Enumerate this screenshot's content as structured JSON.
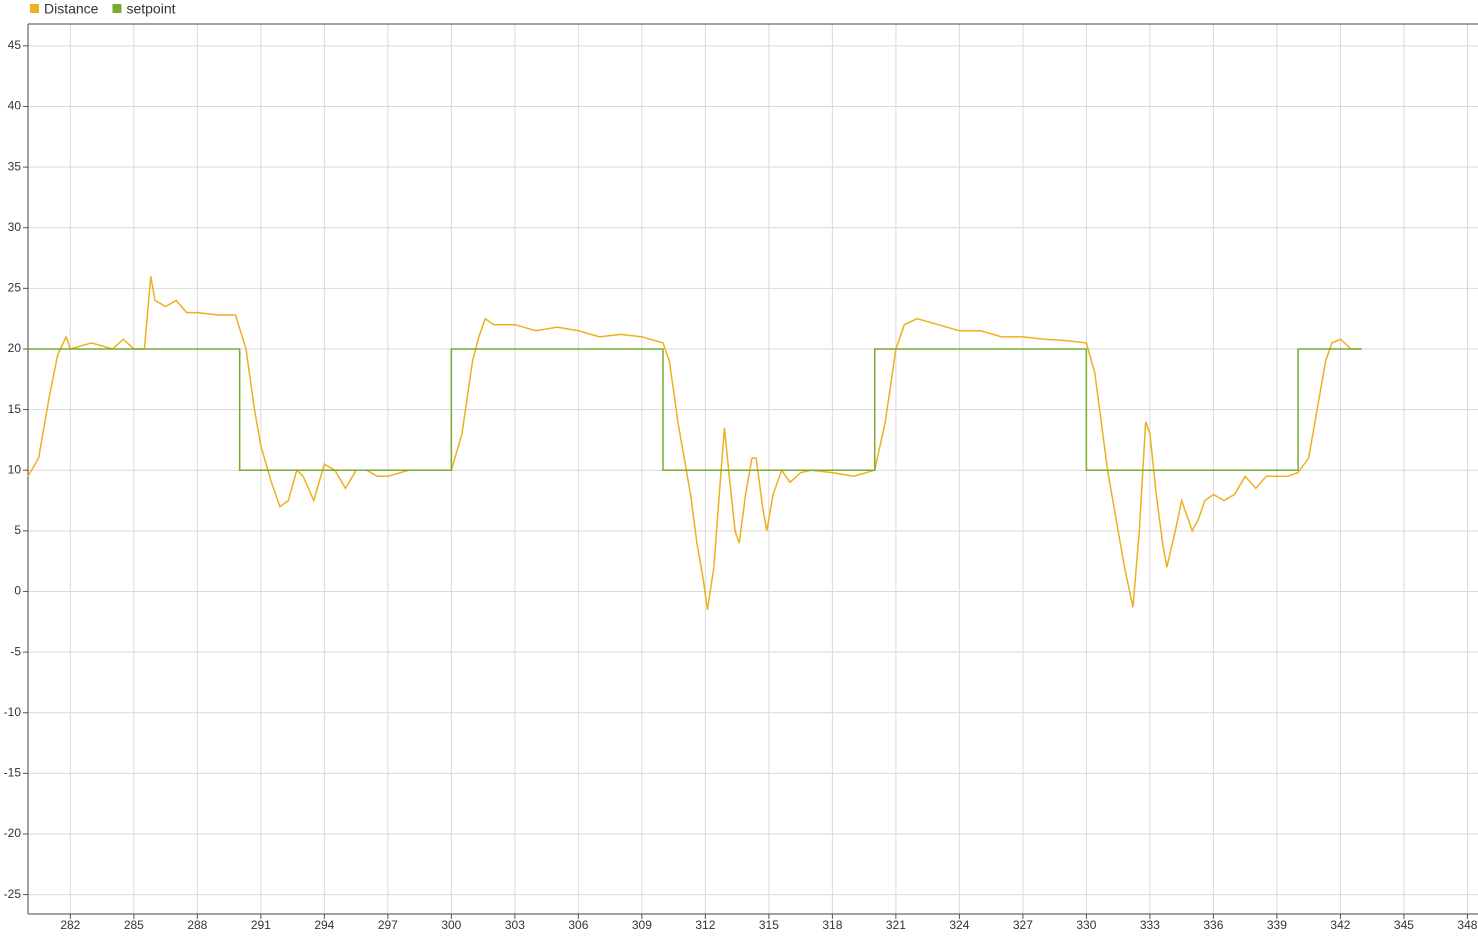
{
  "chart_data": {
    "type": "line",
    "legend": "top-left",
    "grid": true,
    "xlim": [
      280,
      348.5
    ],
    "ylim": [
      -26.6,
      46.8
    ],
    "xticks": [
      282,
      285,
      288,
      291,
      294,
      297,
      300,
      303,
      306,
      309,
      312,
      315,
      318,
      321,
      324,
      327,
      330,
      333,
      336,
      339,
      342,
      345,
      348
    ],
    "yticks": [
      -25,
      -20,
      -15,
      -10,
      -5,
      0,
      5,
      10,
      15,
      20,
      25,
      30,
      35,
      40,
      45
    ],
    "series": [
      {
        "name": "Distance",
        "color": "#edb120",
        "x": [
          280,
          280.5,
          281,
          281.4,
          281.8,
          282,
          283,
          284,
          284.5,
          285,
          285.5,
          285.8,
          286,
          286.5,
          287,
          287.5,
          288,
          289,
          289.8,
          290.3,
          290.7,
          291,
          291.5,
          291.9,
          292.3,
          292.7,
          293,
          293.5,
          294,
          294.5,
          295,
          295.5,
          296,
          296.5,
          297,
          298,
          299,
          300,
          300.5,
          301,
          301.3,
          301.6,
          302,
          303,
          304,
          305,
          306,
          307,
          308,
          309,
          310,
          310.3,
          310.7,
          311,
          311.3,
          311.6,
          311.9,
          312.1,
          312.4,
          312.7,
          312.9,
          313.1,
          313.4,
          313.6,
          313.9,
          314.2,
          314.4,
          314.7,
          314.9,
          315.2,
          315.6,
          316,
          316.5,
          317,
          318,
          319,
          320,
          320.5,
          321,
          321.4,
          322,
          323,
          324,
          325,
          326,
          327,
          328,
          329,
          330,
          330.4,
          330.7,
          331,
          331.4,
          331.8,
          332.2,
          332.5,
          332.8,
          333,
          333.3,
          333.6,
          333.8,
          334.2,
          334.5,
          334.8,
          335,
          335.3,
          335.6,
          336,
          336.5,
          337,
          337.5,
          338,
          338.5,
          339,
          339.5,
          340,
          340.5,
          341,
          341.3,
          341.6,
          342,
          342.5,
          343
        ],
        "values": [
          9.5,
          11,
          16,
          19.5,
          21,
          20,
          20.5,
          20,
          20.8,
          20,
          20,
          26,
          24,
          23.5,
          24,
          23,
          23,
          22.8,
          22.8,
          20,
          15,
          12,
          9,
          7,
          7.5,
          10,
          9.5,
          7.5,
          10.5,
          10,
          8.5,
          10,
          10,
          9.5,
          9.5,
          10,
          10,
          10,
          13,
          19,
          21,
          22.5,
          22,
          22,
          21.5,
          21.8,
          21.5,
          21,
          21.2,
          21,
          20.5,
          19,
          14,
          11,
          8,
          4,
          1,
          -1.5,
          2,
          9,
          13.5,
          10,
          5,
          4,
          8,
          11,
          11,
          7,
          5,
          8,
          10,
          9,
          9.8,
          10,
          9.8,
          9.5,
          10,
          14,
          20,
          22,
          22.5,
          22,
          21.5,
          21.5,
          21,
          21,
          20.8,
          20.7,
          20.5,
          18,
          14,
          10,
          6,
          2,
          -1.3,
          5,
          14,
          13,
          8,
          4,
          2,
          5,
          7.5,
          6,
          5,
          6,
          7.5,
          8,
          7.5,
          8,
          9.5,
          8.5,
          9.5,
          9.5,
          9.5,
          9.8,
          11,
          16,
          19,
          20.5,
          20.8,
          20,
          20
        ]
      },
      {
        "name": "setpoint",
        "color": "#77ac30",
        "x": [
          280,
          290,
          290,
          300,
          300,
          310,
          310,
          320,
          320,
          330,
          330,
          340,
          340,
          343
        ],
        "values": [
          20,
          20,
          10,
          10,
          20,
          20,
          10,
          10,
          20,
          20,
          10,
          10,
          20,
          20
        ]
      }
    ]
  }
}
